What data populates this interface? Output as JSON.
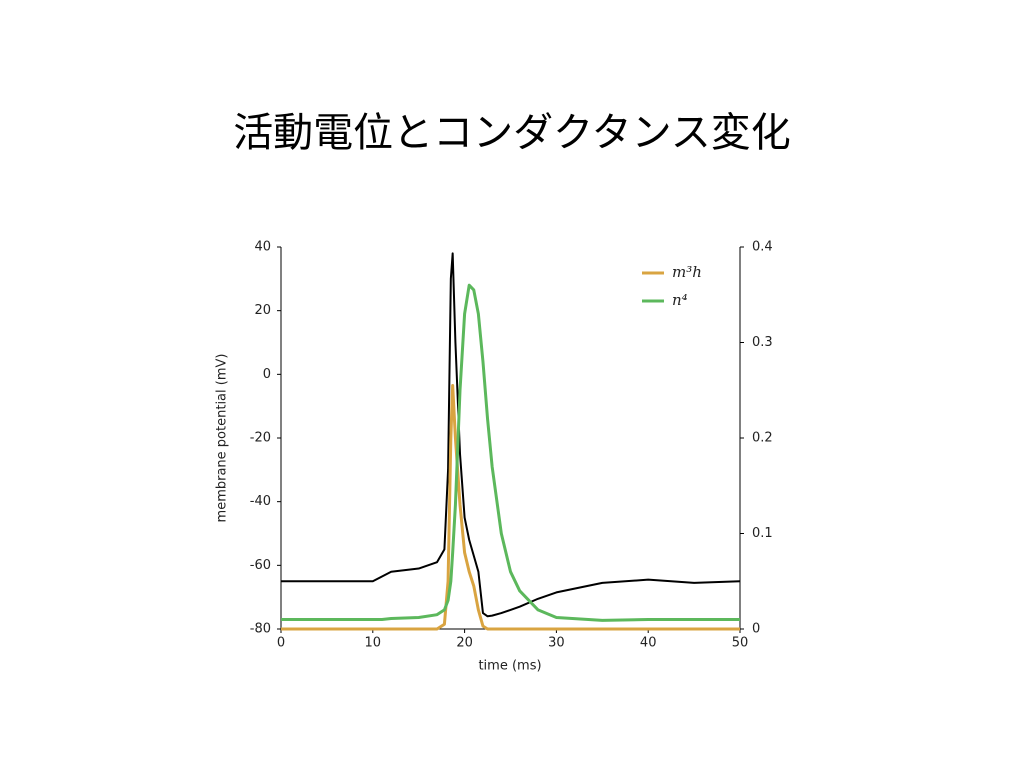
{
  "chart_data": {
    "type": "line",
    "title": "活動電位とコンダクタンス変化",
    "xlabel": "time (ms)",
    "ylabel": "membrane potential (mV)",
    "x": [
      0,
      5,
      10,
      11,
      12,
      15,
      17,
      17.8,
      18.2,
      18.5,
      18.7,
      19,
      19.5,
      20,
      20.5,
      21,
      21.5,
      22,
      22.5,
      23,
      24,
      25,
      26,
      28,
      30,
      35,
      40,
      45,
      50
    ],
    "series": [
      {
        "color": "#000000",
        "axis": "y",
        "values": [
          -65,
          -65,
          -65,
          -63.5,
          -62,
          -61,
          -59,
          -55,
          -30,
          30,
          38,
          10,
          -25,
          -45,
          -52,
          -57,
          -62,
          -75,
          -76,
          -75.8,
          -75,
          -74,
          -73,
          -70.5,
          -68.5,
          -65.5,
          -64.5,
          -65.5,
          -65
        ]
      },
      {
        "name": "m³h",
        "color": "#d9a441",
        "axis": "y2",
        "values": [
          0,
          0,
          0,
          0,
          0,
          0,
          0,
          0.005,
          0.05,
          0.2,
          0.255,
          0.2,
          0.13,
          0.08,
          0.06,
          0.045,
          0.02,
          0.003,
          0,
          0,
          0,
          0,
          0,
          0,
          0,
          0,
          0,
          0,
          0
        ]
      },
      {
        "name": "n⁴",
        "color": "#5cb85c",
        "axis": "y2",
        "values": [
          0.01,
          0.01,
          0.01,
          0.01,
          0.011,
          0.012,
          0.015,
          0.02,
          0.03,
          0.05,
          0.08,
          0.13,
          0.25,
          0.33,
          0.36,
          0.355,
          0.33,
          0.28,
          0.22,
          0.17,
          0.1,
          0.06,
          0.04,
          0.02,
          0.012,
          0.009,
          0.01,
          0.01,
          0.01
        ]
      }
    ],
    "xlim": [
      0,
      50
    ],
    "xticks": [
      0,
      10,
      20,
      30,
      40,
      50
    ],
    "ylim": [
      -80,
      40
    ],
    "yticks": [
      -80,
      -60,
      -40,
      -20,
      0,
      20,
      40
    ],
    "y2lim": [
      0,
      0.4
    ],
    "y2ticks": [
      0,
      0.1,
      0.2,
      0.3,
      0.4
    ],
    "legend": "upper-right",
    "grid": false
  }
}
